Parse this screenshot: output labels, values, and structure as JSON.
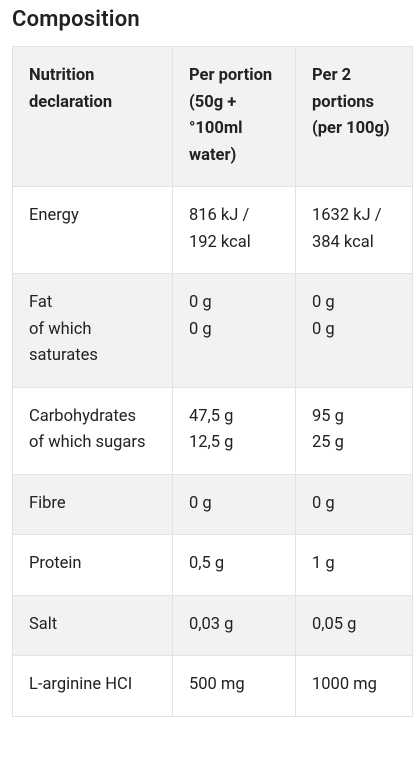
{
  "title": "Composition",
  "table": {
    "rows": [
      [
        [
          "Nutrition declaration"
        ],
        [
          "Per portion (50g + °100ml water)"
        ],
        [
          "Per 2 portions (per 100g)"
        ]
      ],
      [
        [
          "Energy"
        ],
        [
          "816 kJ / 192 kcal"
        ],
        [
          "1632 kJ / 384 kcal"
        ]
      ],
      [
        [
          "Fat",
          "of which saturates"
        ],
        [
          "0 g",
          "0 g"
        ],
        [
          "0 g",
          "0 g"
        ]
      ],
      [
        [
          "Carbohydrates",
          "of which sugars"
        ],
        [
          "47,5 g",
          "12,5 g"
        ],
        [
          "95 g",
          "25 g"
        ]
      ],
      [
        [
          "Fibre"
        ],
        [
          "0 g"
        ],
        [
          "0 g"
        ]
      ],
      [
        [
          "Protein"
        ],
        [
          "0,5 g"
        ],
        [
          "1 g"
        ]
      ],
      [
        [
          "Salt"
        ],
        [
          "0,03 g"
        ],
        [
          "0,05 g"
        ]
      ],
      [
        [
          "L-arginine HCI"
        ],
        [
          "500 mg"
        ],
        [
          "1000 mg"
        ]
      ]
    ]
  }
}
